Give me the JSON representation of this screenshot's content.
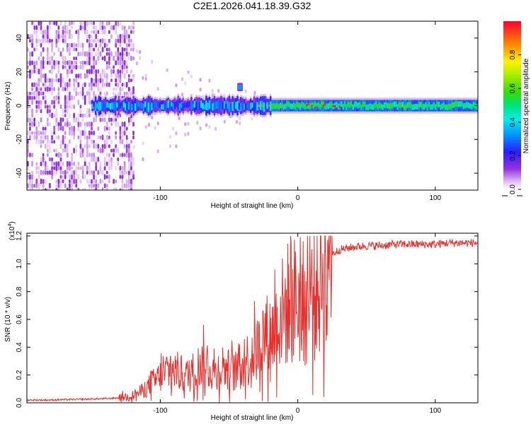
{
  "figure_title": "C2E1.2026.041.18.39.G32",
  "chart_data": [
    {
      "type": "heatmap",
      "panel": "top",
      "title": "C2E1.2026.041.18.39.G32",
      "xlabel": "Height of straight line (km)",
      "ylabel": "Frequency (Hz)",
      "xlim": [
        -197,
        131
      ],
      "ylim": [
        -50,
        50
      ],
      "xticks": [
        -100,
        0,
        100
      ],
      "yticks": [
        -40,
        -20,
        0,
        20,
        40
      ],
      "x_tick_labels": [
        "-100",
        "0",
        "100"
      ],
      "y_tick_labels": [
        "-40",
        "-20",
        "0",
        "20",
        "40"
      ],
      "grid": false,
      "colormap": "rainbow (purple to red)",
      "colorbar": {
        "label": "Normalized spectral amplitude",
        "range": [
          0,
          1
        ],
        "ticks": [
          0.0,
          0.2,
          0.4,
          0.6,
          0.8
        ],
        "tick_labels": [
          "0.0",
          "0.2",
          "0.4",
          "0.6",
          "0.8"
        ]
      },
      "description_of_signal": {
        "noise_region_x": [
          -197,
          -120
        ],
        "scatter_region_x": [
          -120,
          -20
        ],
        "line_center_hz": 0,
        "line_halfwidth_hz": 3,
        "secondary_feature": {
          "x": -42,
          "frequency_hz": 11
        }
      }
    },
    {
      "type": "line",
      "panel": "bottom",
      "xlabel": "Height of straight line (km)",
      "ylabel": "SNR (10 * v/v)",
      "yscale_label": "(x10",
      "yscale_exponent": "4",
      "y_multiplier": 10000,
      "xlim": [
        -197,
        131
      ],
      "ylim": [
        0,
        1.22
      ],
      "xticks": [
        -100,
        0,
        100
      ],
      "yticks": [
        0.0,
        0.2,
        0.4,
        0.6,
        0.8,
        1.0,
        1.2
      ],
      "x_tick_labels": [
        "-100",
        "0",
        "100"
      ],
      "y_tick_labels": [
        "0.0",
        "0.2",
        "0.4",
        "0.6",
        "0.8",
        "1.0",
        "1.2"
      ],
      "grid": false,
      "color": "#e8302c",
      "series": [
        {
          "name": "SNR",
          "x": [
            -197,
            -180,
            -160,
            -140,
            -130,
            -120,
            -115,
            -110,
            -105,
            -100,
            -95,
            -90,
            -85,
            -80,
            -75,
            -70,
            -65,
            -60,
            -55,
            -50,
            -45,
            -40,
            -35,
            -30,
            -25,
            -20,
            -15,
            -10,
            -5,
            0,
            5,
            10,
            15,
            20,
            25,
            30,
            35,
            40,
            50,
            60,
            70,
            80,
            90,
            100,
            110,
            120,
            131
          ],
          "values": [
            0.02,
            0.02,
            0.025,
            0.03,
            0.035,
            0.05,
            0.07,
            0.1,
            0.14,
            0.18,
            0.2,
            0.22,
            0.2,
            0.18,
            0.22,
            0.26,
            0.24,
            0.2,
            0.25,
            0.22,
            0.22,
            0.28,
            0.3,
            0.35,
            0.45,
            0.45,
            0.55,
            0.62,
            0.7,
            0.68,
            0.66,
            0.7,
            0.8,
            0.95,
            1.07,
            1.1,
            1.11,
            1.12,
            1.13,
            1.13,
            1.14,
            1.14,
            1.14,
            1.14,
            1.15,
            1.15,
            1.15
          ]
        }
      ]
    }
  ]
}
